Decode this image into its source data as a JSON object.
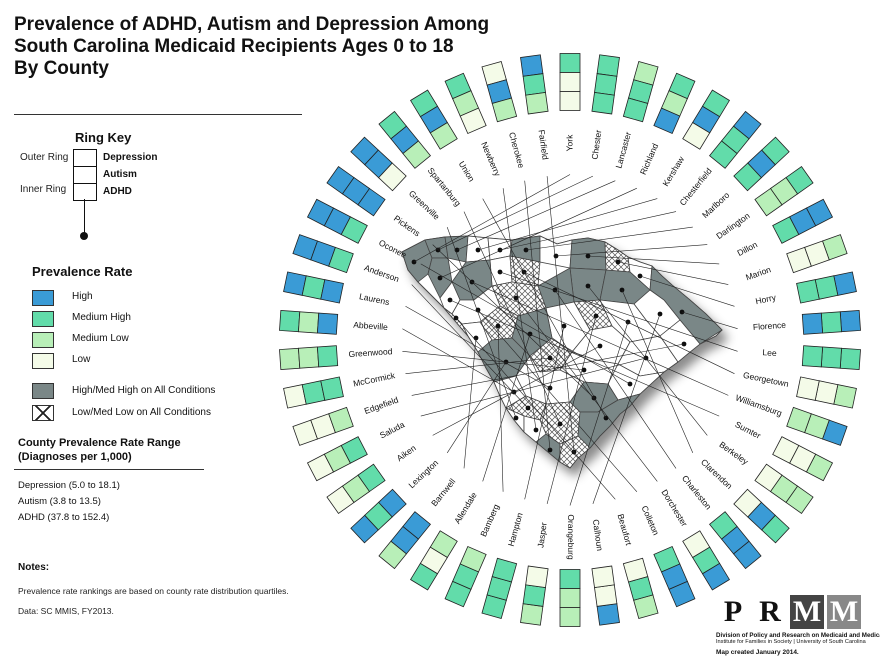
{
  "title": {
    "line1": "Prevalence of ADHD, Autism and Depression Among",
    "line2": "South Carolina Medicaid Recipients Ages 0 to 18",
    "line3": "By County"
  },
  "ring_key": {
    "title": "Ring Key",
    "outer_label": "Outer Ring",
    "inner_label": "Inner Ring",
    "depression": "Depression",
    "autism": "Autism",
    "adhd": "ADHD"
  },
  "prevalence": {
    "title": "Prevalence Rate",
    "high": "High",
    "medium_high": "Medium High",
    "medium_low": "Medium Low",
    "low": "Low",
    "high_all": "High/Med High on All Conditions",
    "low_all": "Low/Med Low on All Conditions"
  },
  "colors": {
    "high": "#3a9bd6",
    "medium_high": "#62dcaa",
    "medium_low": "#b8efb8",
    "low": "#f4fbe8",
    "high_all": "#7a8787",
    "county_fill": "#ffffff",
    "county_border": "#444444"
  },
  "range": {
    "title_line1": "County Prevalence Rate Range",
    "title_line2": "(Diagnoses per 1,000)",
    "depression": "Depression (5.0 to 18.1)",
    "autism": "Autism (3.8 to 13.5)",
    "adhd": "ADHD (37.8 to 152.4)"
  },
  "notes": {
    "title": "Notes:",
    "line1": "Prevalence rate rankings are based on county rate distribution quartiles.",
    "line2": "Data:  SC MMIS, FY2013."
  },
  "logo": {
    "letters": [
      "P",
      "R",
      "M",
      "M"
    ],
    "line1": "Division of Policy and Research on Medicaid and Medicare",
    "line2": "Institute for Families in Society | University of South Carolina",
    "date": "Map created January 2014."
  },
  "counties": [
    {
      "name": "York",
      "rings": [
        "medium_high",
        "low",
        "low"
      ]
    },
    {
      "name": "Chester",
      "rings": [
        "medium_high",
        "medium_high",
        "medium_high"
      ]
    },
    {
      "name": "Lancaster",
      "rings": [
        "medium_low",
        "medium_high",
        "medium_high"
      ]
    },
    {
      "name": "Richland",
      "rings": [
        "medium_high",
        "medium_low",
        "high"
      ]
    },
    {
      "name": "Kershaw",
      "rings": [
        "medium_high",
        "high",
        "low"
      ]
    },
    {
      "name": "Chesterfield",
      "rings": [
        "high",
        "medium_high",
        "medium_high"
      ]
    },
    {
      "name": "Marlboro",
      "rings": [
        "medium_high",
        "high",
        "medium_high"
      ]
    },
    {
      "name": "Darlington",
      "rings": [
        "medium_high",
        "medium_low",
        "medium_low"
      ]
    },
    {
      "name": "Dillon",
      "rings": [
        "high",
        "high",
        "medium_high"
      ]
    },
    {
      "name": "Marion",
      "rings": [
        "medium_low",
        "low",
        "low"
      ]
    },
    {
      "name": "Horry",
      "rings": [
        "high",
        "medium_high",
        "medium_high"
      ]
    },
    {
      "name": "Florence",
      "rings": [
        "high",
        "medium_high",
        "high"
      ]
    },
    {
      "name": "Lee",
      "rings": [
        "medium_high",
        "medium_high",
        "medium_high"
      ]
    },
    {
      "name": "Georgetown",
      "rings": [
        "medium_low",
        "low",
        "low"
      ]
    },
    {
      "name": "Williamsburg",
      "rings": [
        "high",
        "medium_low",
        "medium_low"
      ]
    },
    {
      "name": "Sumter",
      "rings": [
        "medium_low",
        "low",
        "low"
      ]
    },
    {
      "name": "Berkeley",
      "rings": [
        "medium_low",
        "medium_low",
        "low"
      ]
    },
    {
      "name": "Clarendon",
      "rings": [
        "medium_high",
        "high",
        "low"
      ]
    },
    {
      "name": "Charleston",
      "rings": [
        "high",
        "high",
        "medium_high"
      ]
    },
    {
      "name": "Dorchester",
      "rings": [
        "high",
        "medium_high",
        "low"
      ]
    },
    {
      "name": "Colleton",
      "rings": [
        "high",
        "high",
        "medium_high"
      ]
    },
    {
      "name": "Beaufort",
      "rings": [
        "medium_low",
        "medium_high",
        "low"
      ]
    },
    {
      "name": "Calhoun",
      "rings": [
        "high",
        "low",
        "low"
      ]
    },
    {
      "name": "Orangeburg",
      "rings": [
        "medium_low",
        "medium_low",
        "medium_high"
      ]
    },
    {
      "name": "Jasper",
      "rings": [
        "medium_low",
        "medium_high",
        "low"
      ]
    },
    {
      "name": "Hampton",
      "rings": [
        "medium_high",
        "medium_high",
        "medium_high"
      ]
    },
    {
      "name": "Bamberg",
      "rings": [
        "medium_high",
        "medium_high",
        "medium_low"
      ]
    },
    {
      "name": "Allendale",
      "rings": [
        "medium_high",
        "low",
        "medium_low"
      ]
    },
    {
      "name": "Barnwell",
      "rings": [
        "medium_low",
        "high",
        "high"
      ]
    },
    {
      "name": "Lexington",
      "rings": [
        "high",
        "medium_high",
        "high"
      ]
    },
    {
      "name": "Aiken",
      "rings": [
        "low",
        "medium_low",
        "medium_high"
      ]
    },
    {
      "name": "Saluda",
      "rings": [
        "low",
        "medium_low",
        "medium_high"
      ]
    },
    {
      "name": "Edgefield",
      "rings": [
        "low",
        "low",
        "medium_low"
      ]
    },
    {
      "name": "McCormick",
      "rings": [
        "low",
        "medium_high",
        "medium_high"
      ]
    },
    {
      "name": "Greenwood",
      "rings": [
        "medium_low",
        "medium_low",
        "medium_high"
      ]
    },
    {
      "name": "Abbeville",
      "rings": [
        "medium_high",
        "medium_low",
        "high"
      ]
    },
    {
      "name": "Laurens",
      "rings": [
        "high",
        "medium_high",
        "high"
      ]
    },
    {
      "name": "Anderson",
      "rings": [
        "high",
        "high",
        "medium_high"
      ]
    },
    {
      "name": "Oconee",
      "rings": [
        "high",
        "high",
        "medium_high"
      ]
    },
    {
      "name": "Pickens",
      "rings": [
        "high",
        "high",
        "high"
      ]
    },
    {
      "name": "Greenville",
      "rings": [
        "high",
        "high",
        "low"
      ]
    },
    {
      "name": "Spartanburg",
      "rings": [
        "medium_high",
        "high",
        "medium_low"
      ]
    },
    {
      "name": "Union",
      "rings": [
        "medium_high",
        "high",
        "medium_low"
      ]
    },
    {
      "name": "Newberry",
      "rings": [
        "medium_high",
        "medium_low",
        "low"
      ]
    },
    {
      "name": "Cherokee",
      "rings": [
        "low",
        "high",
        "medium_low"
      ]
    },
    {
      "name": "Fairfield",
      "rings": [
        "high",
        "medium_high",
        "medium_low"
      ]
    }
  ]
}
